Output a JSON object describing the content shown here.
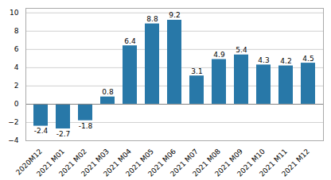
{
  "chart_data": {
    "type": "bar",
    "categories": [
      "2020M12",
      "2021 M01",
      "2021 M02",
      "2021 M03",
      "2021 M04",
      "2021 M05",
      "2021 M06",
      "2021 M07",
      "2021 M08",
      "2021 M09",
      "2021 M10",
      "2021 M11",
      "2021 M12"
    ],
    "values": [
      -2.4,
      -2.7,
      -1.8,
      0.8,
      6.4,
      8.8,
      9.2,
      3.1,
      4.9,
      5.4,
      4.3,
      4.2,
      4.5
    ],
    "color": "#2878a8",
    "ylim": [
      -4,
      10.5
    ],
    "yticks": [
      -4,
      -2,
      0,
      2,
      4,
      6,
      8,
      10
    ],
    "grid": true,
    "data_labels": true
  }
}
